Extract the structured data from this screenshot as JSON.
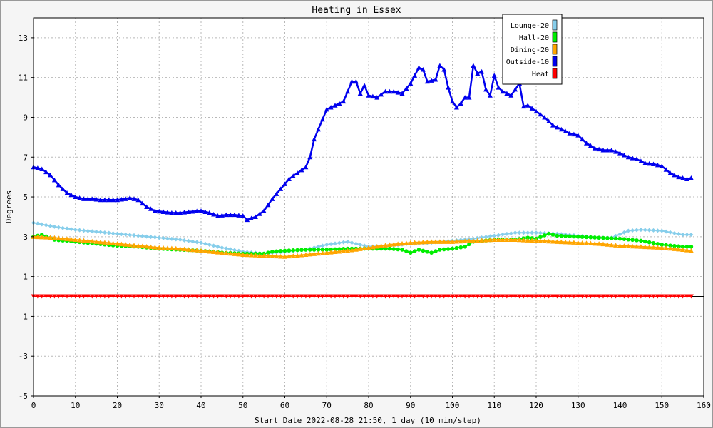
{
  "chart_data": {
    "type": "line",
    "title": "Heating in Essex",
    "xlabel": "Start Date 2022-08-28 21:50, 1 day (10 min/step)",
    "ylabel": "Degrees",
    "xlim": [
      0,
      160
    ],
    "ylim": [
      -5,
      14
    ],
    "x_ticks": [
      0,
      10,
      20,
      30,
      40,
      50,
      60,
      70,
      80,
      90,
      100,
      110,
      120,
      130,
      140,
      150,
      160
    ],
    "y_ticks": [
      -5,
      -3,
      -1,
      1,
      3,
      5,
      7,
      9,
      11,
      13
    ],
    "grid": true,
    "legend_position": "top-right",
    "series": [
      {
        "name": "Lounge-20",
        "color": "#87ceeb",
        "x": [
          0,
          5,
          10,
          15,
          20,
          25,
          30,
          35,
          40,
          45,
          50,
          55,
          60,
          65,
          70,
          75,
          80,
          85,
          90,
          95,
          100,
          105,
          110,
          115,
          120,
          125,
          130,
          135,
          138,
          142,
          145,
          150,
          155,
          157
        ],
        "y": [
          3.7,
          3.5,
          3.35,
          3.25,
          3.15,
          3.05,
          2.95,
          2.85,
          2.7,
          2.45,
          2.25,
          2.15,
          2.25,
          2.35,
          2.6,
          2.75,
          2.5,
          2.55,
          2.65,
          2.7,
          2.8,
          2.9,
          3.05,
          3.2,
          3.2,
          3.15,
          3.05,
          2.95,
          2.95,
          3.3,
          3.35,
          3.3,
          3.1,
          3.1
        ]
      },
      {
        "name": "Hall-20",
        "color": "#00ee00",
        "x": [
          0,
          2,
          5,
          10,
          15,
          20,
          25,
          30,
          35,
          40,
          45,
          50,
          55,
          57,
          60,
          65,
          70,
          75,
          80,
          85,
          88,
          90,
          92,
          95,
          97,
          100,
          103,
          105,
          110,
          115,
          118,
          120,
          123,
          125,
          130,
          135,
          140,
          145,
          150,
          155,
          157
        ],
        "y": [
          3.0,
          3.1,
          2.85,
          2.75,
          2.65,
          2.55,
          2.5,
          2.4,
          2.35,
          2.3,
          2.2,
          2.15,
          2.15,
          2.25,
          2.3,
          2.35,
          2.35,
          2.4,
          2.4,
          2.4,
          2.35,
          2.2,
          2.35,
          2.2,
          2.35,
          2.4,
          2.5,
          2.75,
          2.85,
          2.85,
          2.95,
          2.9,
          3.15,
          3.05,
          3.0,
          2.95,
          2.9,
          2.8,
          2.6,
          2.5,
          2.5
        ]
      },
      {
        "name": "Dining-20",
        "color": "#ffa500",
        "x": [
          0,
          5,
          10,
          15,
          20,
          25,
          30,
          35,
          40,
          45,
          50,
          55,
          60,
          65,
          70,
          75,
          80,
          85,
          90,
          95,
          100,
          105,
          110,
          115,
          120,
          125,
          130,
          135,
          140,
          145,
          150,
          155,
          157
        ],
        "y": [
          3.0,
          2.95,
          2.85,
          2.75,
          2.65,
          2.55,
          2.45,
          2.4,
          2.3,
          2.2,
          2.1,
          2.05,
          2.0,
          2.1,
          2.2,
          2.3,
          2.45,
          2.6,
          2.7,
          2.75,
          2.75,
          2.8,
          2.85,
          2.85,
          2.8,
          2.75,
          2.7,
          2.65,
          2.55,
          2.5,
          2.45,
          2.35,
          2.3
        ]
      },
      {
        "name": "Outside-10",
        "color": "#0000ee",
        "x": [
          0,
          2,
          4,
          6,
          8,
          10,
          12,
          14,
          16,
          18,
          20,
          22,
          23,
          25,
          27,
          29,
          31,
          33,
          35,
          37,
          40,
          42,
          44,
          46,
          48,
          50,
          51,
          53,
          55,
          57,
          59,
          61,
          63,
          65,
          66,
          67,
          68,
          69,
          70,
          72,
          74,
          75,
          76,
          77,
          78,
          79,
          80,
          82,
          84,
          86,
          88,
          90,
          92,
          93,
          94,
          96,
          97,
          98,
          99,
          100,
          101,
          102,
          103,
          104,
          105,
          106,
          107,
          108,
          109,
          110,
          111,
          112,
          114,
          116,
          117,
          118,
          120,
          122,
          124,
          126,
          128,
          130,
          132,
          134,
          136,
          138,
          140,
          142,
          144,
          146,
          148,
          150,
          152,
          154,
          156,
          157
        ],
        "y": [
          6.5,
          6.4,
          6.1,
          5.6,
          5.2,
          5.0,
          4.9,
          4.9,
          4.85,
          4.85,
          4.85,
          4.9,
          4.95,
          4.85,
          4.5,
          4.3,
          4.25,
          4.2,
          4.2,
          4.25,
          4.3,
          4.2,
          4.05,
          4.1,
          4.1,
          4.05,
          3.85,
          4.0,
          4.3,
          4.9,
          5.4,
          5.9,
          6.2,
          6.5,
          7.0,
          7.9,
          8.4,
          8.9,
          9.4,
          9.6,
          9.8,
          10.3,
          10.8,
          10.8,
          10.2,
          10.6,
          10.1,
          10.0,
          10.3,
          10.3,
          10.2,
          10.7,
          11.5,
          11.4,
          10.8,
          10.9,
          11.6,
          11.4,
          10.5,
          9.8,
          9.5,
          9.7,
          10.0,
          10.0,
          11.6,
          11.2,
          11.3,
          10.4,
          10.1,
          11.1,
          10.5,
          10.3,
          10.1,
          10.7,
          9.55,
          9.6,
          9.3,
          9.0,
          8.6,
          8.4,
          8.2,
          8.1,
          7.7,
          7.45,
          7.35,
          7.35,
          7.2,
          7.0,
          6.9,
          6.7,
          6.65,
          6.55,
          6.2,
          6.0,
          5.9,
          5.95
        ]
      },
      {
        "name": "Heat",
        "color": "#ff0000",
        "x": [
          0,
          157
        ],
        "y": [
          0,
          0
        ]
      }
    ]
  }
}
